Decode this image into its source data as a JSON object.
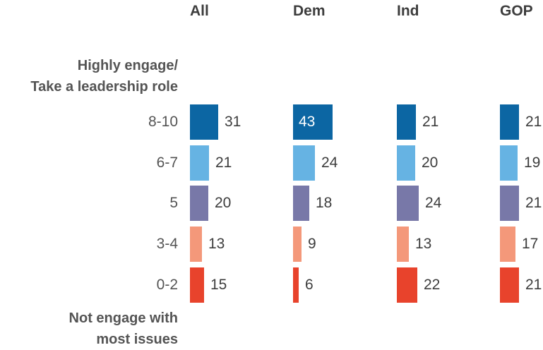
{
  "chart_data": {
    "type": "bar",
    "orientation": "horizontal",
    "top_note": "Highly engage/\nTake a leadership role",
    "bottom_note": "Not engage with\nmost issues",
    "categories": [
      "8-10",
      "6-7",
      "5",
      "3-4",
      "0-2"
    ],
    "colors": [
      "#0c66a3",
      "#66b3e3",
      "#7878a8",
      "#f4987a",
      "#e8432c"
    ],
    "series": [
      {
        "name": "All",
        "values": [
          31,
          21,
          20,
          13,
          15
        ]
      },
      {
        "name": "Dem",
        "values": [
          43,
          24,
          18,
          9,
          6
        ]
      },
      {
        "name": "Ind",
        "values": [
          21,
          20,
          24,
          13,
          22
        ]
      },
      {
        "name": "GOP",
        "values": [
          21,
          19,
          21,
          17,
          21
        ]
      }
    ]
  }
}
